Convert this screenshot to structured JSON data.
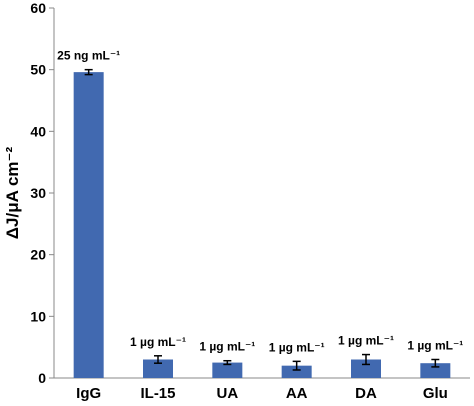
{
  "chart_data": {
    "type": "bar",
    "title": "",
    "xlabel": "",
    "ylabel": "ΔJ/μA cm⁻²",
    "ylim": [
      0,
      60
    ],
    "yticks": [
      0,
      10,
      20,
      30,
      40,
      50,
      60
    ],
    "grid": false,
    "categories": [
      "IgG",
      "IL-15",
      "UA",
      "AA",
      "DA",
      "Glu"
    ],
    "values": [
      49.6,
      3.0,
      2.5,
      2.0,
      3.0,
      2.4
    ],
    "errors": [
      0.4,
      0.6,
      0.3,
      0.7,
      0.8,
      0.6
    ],
    "data_labels": [
      "25 ng mL⁻¹",
      "1 µg mL⁻¹",
      "1 µg mL⁻¹",
      "1 µg mL⁻¹",
      "1 µg mL⁻¹",
      "1 µg mL⁻¹"
    ],
    "colors": {
      "bar": "#4169b0",
      "axis": "#888888",
      "error": "#000000"
    }
  }
}
